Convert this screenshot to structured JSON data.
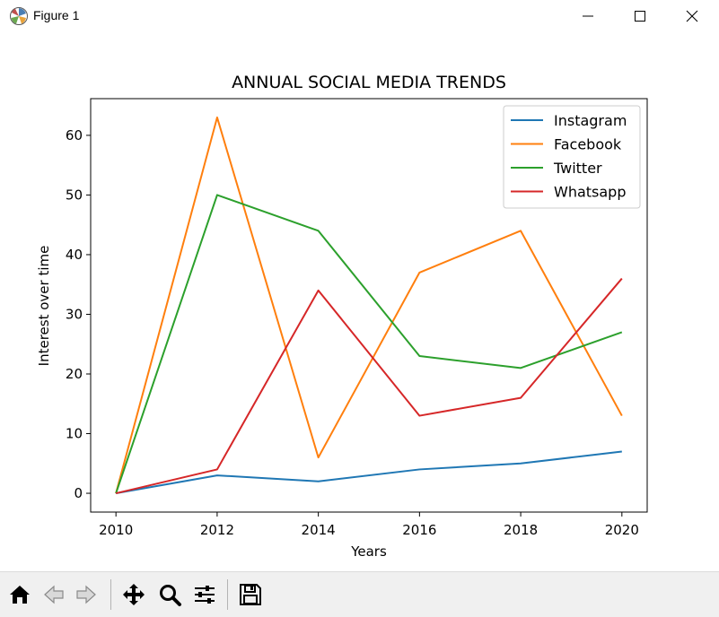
{
  "window": {
    "title": "Figure 1"
  },
  "toolbar": {
    "icons": [
      "home-icon",
      "back-arrow-icon",
      "forward-arrow-icon",
      "pan-icon",
      "zoom-icon",
      "configure-subplots-icon",
      "save-icon"
    ]
  },
  "chart_data": {
    "type": "line",
    "title": "ANNUAL SOCIAL MEDIA TRENDS",
    "xlabel": "Years",
    "ylabel": "Interest over time",
    "x": [
      2010,
      2012,
      2014,
      2016,
      2018,
      2020
    ],
    "xticks": [
      2010,
      2012,
      2014,
      2016,
      2018,
      2020
    ],
    "yticks": [
      0,
      10,
      20,
      30,
      40,
      50,
      60
    ],
    "xlim": [
      2009.5,
      2020.5
    ],
    "ylim": [
      -3.15,
      66.15
    ],
    "grid": false,
    "legend_position": "top-right",
    "series": [
      {
        "name": "Instagram",
        "color": "#1f77b4",
        "values": [
          0,
          3,
          2,
          4,
          5,
          7
        ]
      },
      {
        "name": "Facebook",
        "color": "#ff7f0e",
        "values": [
          0,
          63,
          6,
          37,
          44,
          13
        ]
      },
      {
        "name": "Twitter",
        "color": "#2ca02c",
        "values": [
          0,
          50,
          44,
          23,
          21,
          27
        ]
      },
      {
        "name": "Whatsapp",
        "color": "#d62728",
        "values": [
          0,
          4,
          34,
          13,
          16,
          36
        ]
      }
    ]
  }
}
